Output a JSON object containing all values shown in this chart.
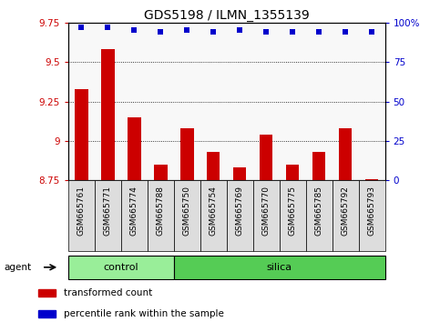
{
  "title": "GDS5198 / ILMN_1355139",
  "samples": [
    "GSM665761",
    "GSM665771",
    "GSM665774",
    "GSM665788",
    "GSM665750",
    "GSM665754",
    "GSM665769",
    "GSM665770",
    "GSM665775",
    "GSM665785",
    "GSM665792",
    "GSM665793"
  ],
  "bar_values": [
    9.33,
    9.58,
    9.15,
    8.85,
    9.08,
    8.93,
    8.83,
    9.04,
    8.85,
    8.93,
    9.08,
    8.76
  ],
  "percentile_values": [
    97,
    97,
    95,
    94,
    95,
    94,
    95,
    94,
    94,
    94,
    94,
    94
  ],
  "ylim_left": [
    8.75,
    9.75
  ],
  "ylim_right": [
    0,
    100
  ],
  "yticks_left": [
    8.75,
    9.0,
    9.25,
    9.5,
    9.75
  ],
  "yticks_right": [
    0,
    25,
    50,
    75,
    100
  ],
  "ytick_labels_left": [
    "8.75",
    "9",
    "9.25",
    "9.5",
    "9.75"
  ],
  "ytick_labels_right": [
    "0",
    "25",
    "50",
    "75",
    "100%"
  ],
  "bar_color": "#cc0000",
  "dot_color": "#0000cc",
  "bar_bottom": 8.75,
  "n_control": 4,
  "n_silica": 8,
  "control_color": "#99ee99",
  "silica_color": "#55cc55",
  "agent_label": "agent",
  "control_label": "control",
  "silica_label": "silica",
  "legend_bar_label": "transformed count",
  "legend_dot_label": "percentile rank within the sample",
  "title_fontsize": 10,
  "tick_fontsize": 7.5,
  "xtick_fontsize": 6.5,
  "label_fontsize": 8,
  "bar_width": 0.5,
  "facecolor": "#ffffff",
  "plot_bg": "#f8f8f8"
}
